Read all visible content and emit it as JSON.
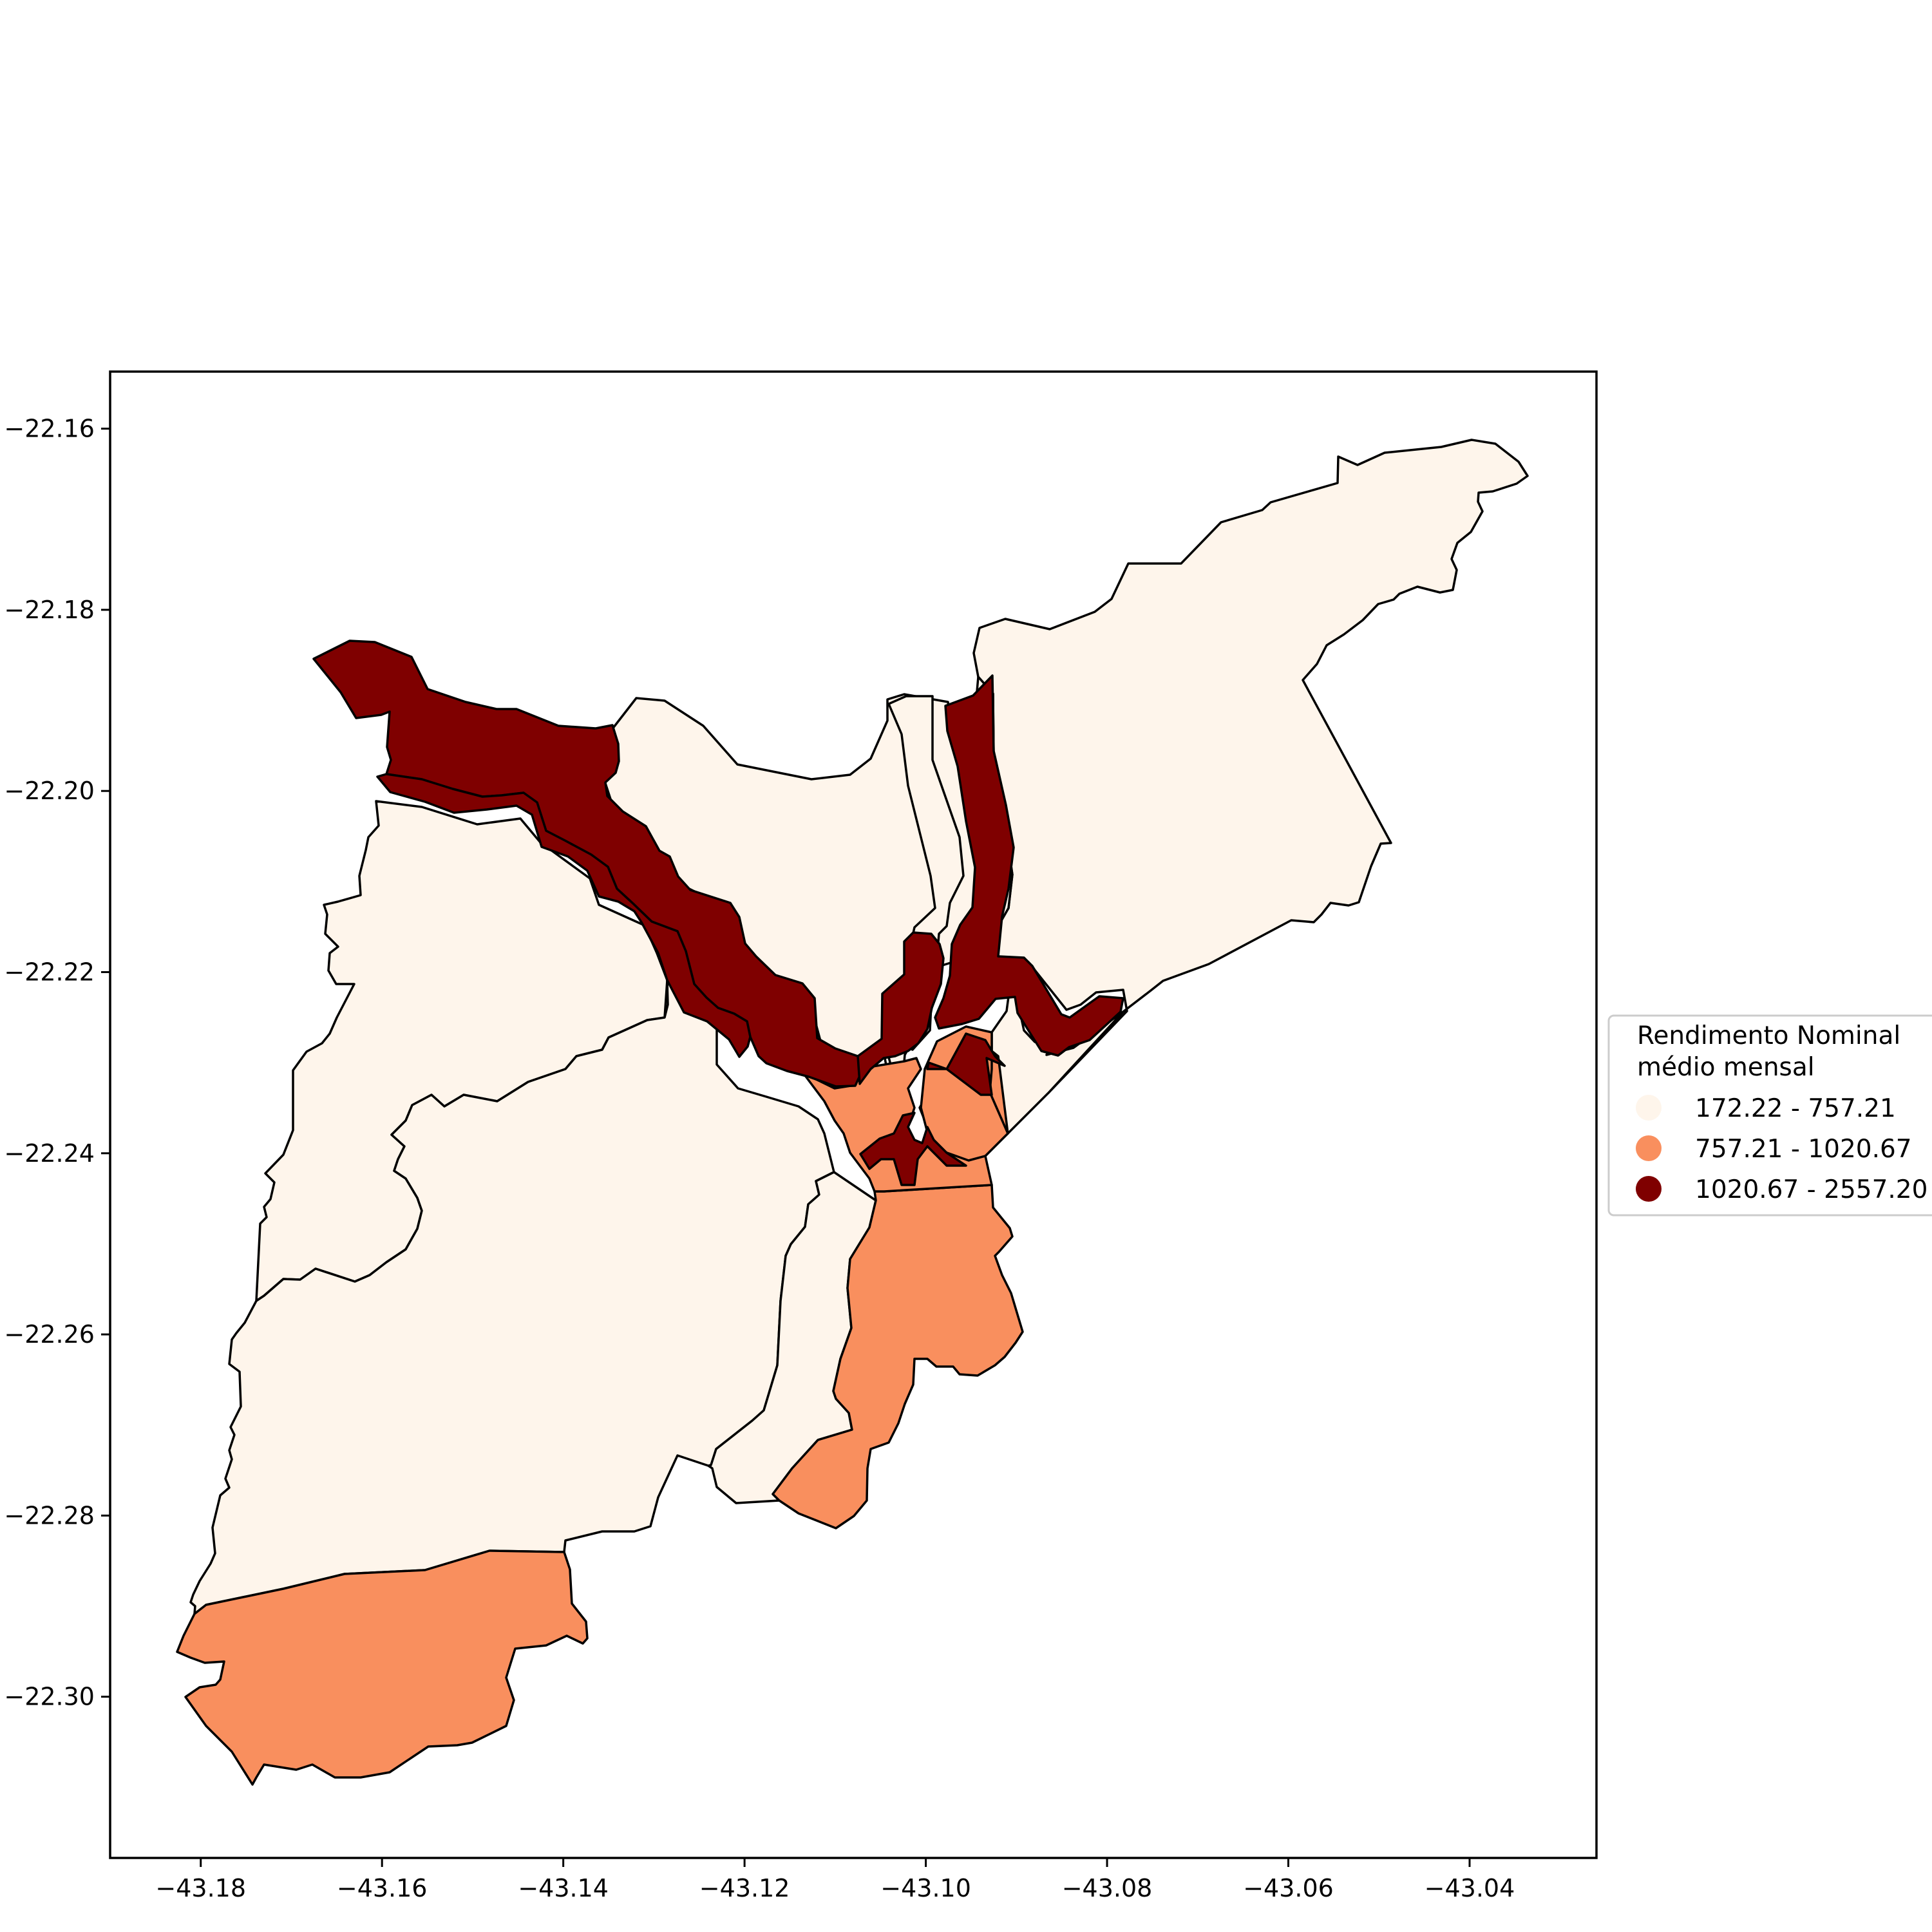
{
  "figure": {
    "xaxis": {
      "tick_labels": [
        "−43.18",
        "−43.16",
        "−43.14",
        "−43.12",
        "−43.10",
        "−43.08",
        "−43.06",
        "−43.04"
      ]
    },
    "yaxis": {
      "tick_labels": [
        "−22.16",
        "−22.18",
        "−22.20",
        "−22.22",
        "−22.24",
        "−22.26",
        "−22.28",
        "−22.30"
      ]
    },
    "legend": {
      "title_line1": "Rendimento Nominal",
      "title_line2": "médio mensal",
      "items": [
        {
          "label": "172.22 - 757.21",
          "color": "#fef5eb"
        },
        {
          "label": "757.21 - 1020.67",
          "color": "#f98f5e"
        },
        {
          "label": "1020.67 - 2557.20",
          "color": "#7f0000"
        }
      ],
      "placement": "right, vertically centered"
    }
  },
  "chart_data": {
    "type": "choropleth map",
    "x_unit": "longitude",
    "y_unit": "latitude",
    "xlim": [
      -43.19,
      -43.026
    ],
    "ylim": [
      -22.3178,
      -22.1537
    ],
    "xticks": [
      -43.18,
      -43.16,
      -43.14,
      -43.12,
      -43.1,
      -43.08,
      -43.06,
      -43.04
    ],
    "yticks": [
      -22.16,
      -22.18,
      -22.2,
      -22.22,
      -22.24,
      -22.26,
      -22.28,
      -22.3
    ],
    "grid": false,
    "classes": [
      {
        "range": [
          172.22,
          757.21
        ],
        "color": "#fef5eb"
      },
      {
        "range": [
          757.21,
          1020.67
        ],
        "color": "#f98f5e"
      },
      {
        "range": [
          1020.67,
          2557.2
        ],
        "color": "#7f0000"
      }
    ]
  }
}
